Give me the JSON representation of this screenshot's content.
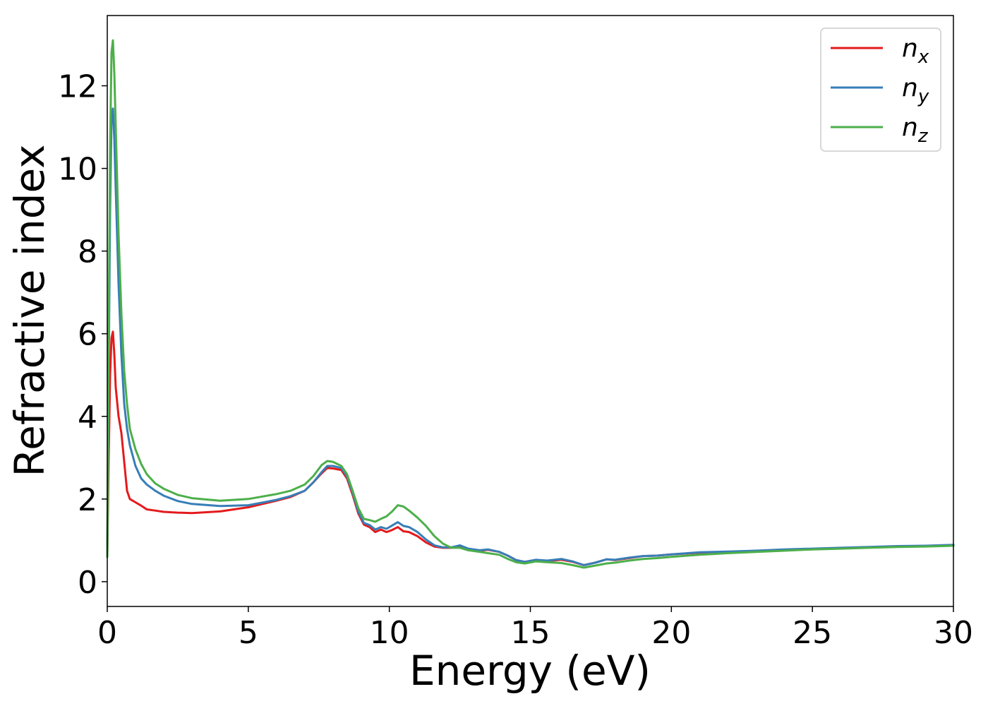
{
  "chart_data": {
    "type": "line",
    "xlabel": "Energy (eV)",
    "ylabel": "Refractive index",
    "xlim": [
      0,
      30
    ],
    "ylim": [
      -0.6,
      13.7
    ],
    "xticks": [
      0,
      5,
      10,
      15,
      20,
      25,
      30
    ],
    "yticks": [
      0,
      2,
      4,
      6,
      8,
      10,
      12
    ],
    "grid": false,
    "legend_position": "top-right",
    "series": [
      {
        "name": "n_x",
        "label_base": "n",
        "label_sub": "x",
        "color": "#e41a1c",
        "x": [
          0,
          0.05,
          0.1,
          0.15,
          0.2,
          0.25,
          0.3,
          0.4,
          0.5,
          0.6,
          0.7,
          0.8,
          1.0,
          1.2,
          1.4,
          1.7,
          2.0,
          2.5,
          3.0,
          4.0,
          5.0,
          6.0,
          6.5,
          7.0,
          7.3,
          7.6,
          7.8,
          8.0,
          8.3,
          8.5,
          8.7,
          8.9,
          9.1,
          9.3,
          9.5,
          9.7,
          9.9,
          10.1,
          10.3,
          10.5,
          10.7,
          11.0,
          11.3,
          11.6,
          11.9,
          12.2,
          12.5,
          12.8,
          13.2,
          13.5,
          13.9,
          14.2,
          14.5,
          14.8,
          15.2,
          15.6,
          16.1,
          16.5,
          16.9,
          17.3,
          17.7,
          18.0,
          18.5,
          19.0,
          19.5,
          20.0,
          21.0,
          22.0,
          23.0,
          24.0,
          25.0,
          26.0,
          27.0,
          28.0,
          29.0,
          30.0
        ],
        "y": [
          0.6,
          3.0,
          5.0,
          5.9,
          6.05,
          5.5,
          4.7,
          4.0,
          3.6,
          2.9,
          2.2,
          2.0,
          1.92,
          1.84,
          1.75,
          1.72,
          1.69,
          1.67,
          1.66,
          1.7,
          1.8,
          1.96,
          2.05,
          2.2,
          2.4,
          2.62,
          2.75,
          2.74,
          2.7,
          2.5,
          2.1,
          1.65,
          1.38,
          1.32,
          1.2,
          1.26,
          1.2,
          1.25,
          1.32,
          1.22,
          1.2,
          1.1,
          0.95,
          0.85,
          0.82,
          0.82,
          0.85,
          0.78,
          0.75,
          0.77,
          0.72,
          0.63,
          0.52,
          0.48,
          0.52,
          0.5,
          0.53,
          0.48,
          0.4,
          0.46,
          0.54,
          0.52,
          0.57,
          0.62,
          0.63,
          0.66,
          0.7,
          0.72,
          0.74,
          0.77,
          0.79,
          0.81,
          0.83,
          0.85,
          0.86,
          0.88
        ]
      },
      {
        "name": "n_y",
        "label_base": "n",
        "label_sub": "y",
        "color": "#377eb8",
        "x": [
          0,
          0.05,
          0.1,
          0.15,
          0.2,
          0.25,
          0.3,
          0.4,
          0.5,
          0.6,
          0.7,
          0.8,
          1.0,
          1.2,
          1.4,
          1.7,
          2.0,
          2.5,
          3.0,
          4.0,
          5.0,
          6.0,
          6.5,
          7.0,
          7.3,
          7.6,
          7.8,
          8.0,
          8.3,
          8.5,
          8.7,
          8.9,
          9.1,
          9.3,
          9.5,
          9.7,
          9.9,
          10.1,
          10.3,
          10.5,
          10.7,
          11.0,
          11.3,
          11.6,
          11.9,
          12.2,
          12.5,
          12.8,
          13.2,
          13.5,
          13.9,
          14.2,
          14.5,
          14.8,
          15.2,
          15.6,
          16.1,
          16.5,
          16.9,
          17.3,
          17.7,
          18.0,
          18.5,
          19.0,
          19.5,
          20.0,
          21.0,
          22.0,
          23.0,
          24.0,
          25.0,
          26.0,
          27.0,
          28.0,
          29.0,
          30.0
        ],
        "y": [
          0.6,
          5.0,
          9.0,
          11.2,
          11.45,
          10.7,
          9.5,
          7.2,
          5.5,
          4.3,
          3.7,
          3.3,
          2.8,
          2.5,
          2.35,
          2.2,
          2.08,
          1.95,
          1.88,
          1.83,
          1.85,
          1.98,
          2.07,
          2.2,
          2.4,
          2.65,
          2.8,
          2.8,
          2.75,
          2.55,
          2.15,
          1.7,
          1.42,
          1.37,
          1.26,
          1.32,
          1.28,
          1.36,
          1.44,
          1.35,
          1.32,
          1.2,
          1.02,
          0.88,
          0.83,
          0.83,
          0.88,
          0.8,
          0.76,
          0.78,
          0.72,
          0.63,
          0.52,
          0.48,
          0.53,
          0.51,
          0.55,
          0.49,
          0.4,
          0.46,
          0.54,
          0.53,
          0.58,
          0.62,
          0.63,
          0.66,
          0.71,
          0.73,
          0.75,
          0.78,
          0.8,
          0.82,
          0.84,
          0.86,
          0.87,
          0.89
        ]
      },
      {
        "name": "n_z",
        "label_base": "n",
        "label_sub": "z",
        "color": "#4daf4a",
        "x": [
          0,
          0.05,
          0.1,
          0.15,
          0.2,
          0.25,
          0.3,
          0.4,
          0.5,
          0.6,
          0.7,
          0.8,
          1.0,
          1.2,
          1.4,
          1.7,
          2.0,
          2.5,
          3.0,
          4.0,
          5.0,
          6.0,
          6.5,
          7.0,
          7.3,
          7.6,
          7.8,
          8.0,
          8.3,
          8.5,
          8.7,
          8.9,
          9.1,
          9.3,
          9.5,
          9.7,
          9.9,
          10.1,
          10.3,
          10.5,
          10.7,
          11.0,
          11.3,
          11.6,
          11.9,
          12.2,
          12.5,
          12.8,
          13.2,
          13.5,
          13.9,
          14.2,
          14.5,
          14.8,
          15.2,
          15.6,
          16.1,
          16.5,
          16.9,
          17.3,
          17.7,
          18.0,
          18.5,
          19.0,
          19.5,
          20.0,
          21.0,
          22.0,
          23.0,
          24.0,
          25.0,
          26.0,
          27.0,
          28.0,
          29.0,
          30.0
        ],
        "y": [
          0.6,
          6.0,
          10.5,
          12.8,
          13.1,
          12.3,
          11.0,
          8.4,
          6.5,
          5.1,
          4.3,
          3.7,
          3.2,
          2.85,
          2.6,
          2.38,
          2.25,
          2.1,
          2.02,
          1.96,
          2.0,
          2.12,
          2.2,
          2.35,
          2.55,
          2.82,
          2.92,
          2.9,
          2.8,
          2.6,
          2.2,
          1.78,
          1.52,
          1.49,
          1.45,
          1.52,
          1.58,
          1.7,
          1.85,
          1.82,
          1.72,
          1.55,
          1.35,
          1.1,
          0.92,
          0.82,
          0.82,
          0.76,
          0.72,
          0.69,
          0.65,
          0.55,
          0.47,
          0.44,
          0.49,
          0.47,
          0.45,
          0.4,
          0.34,
          0.39,
          0.44,
          0.46,
          0.51,
          0.55,
          0.57,
          0.6,
          0.65,
          0.69,
          0.72,
          0.75,
          0.78,
          0.8,
          0.82,
          0.84,
          0.85,
          0.87
        ]
      }
    ]
  }
}
